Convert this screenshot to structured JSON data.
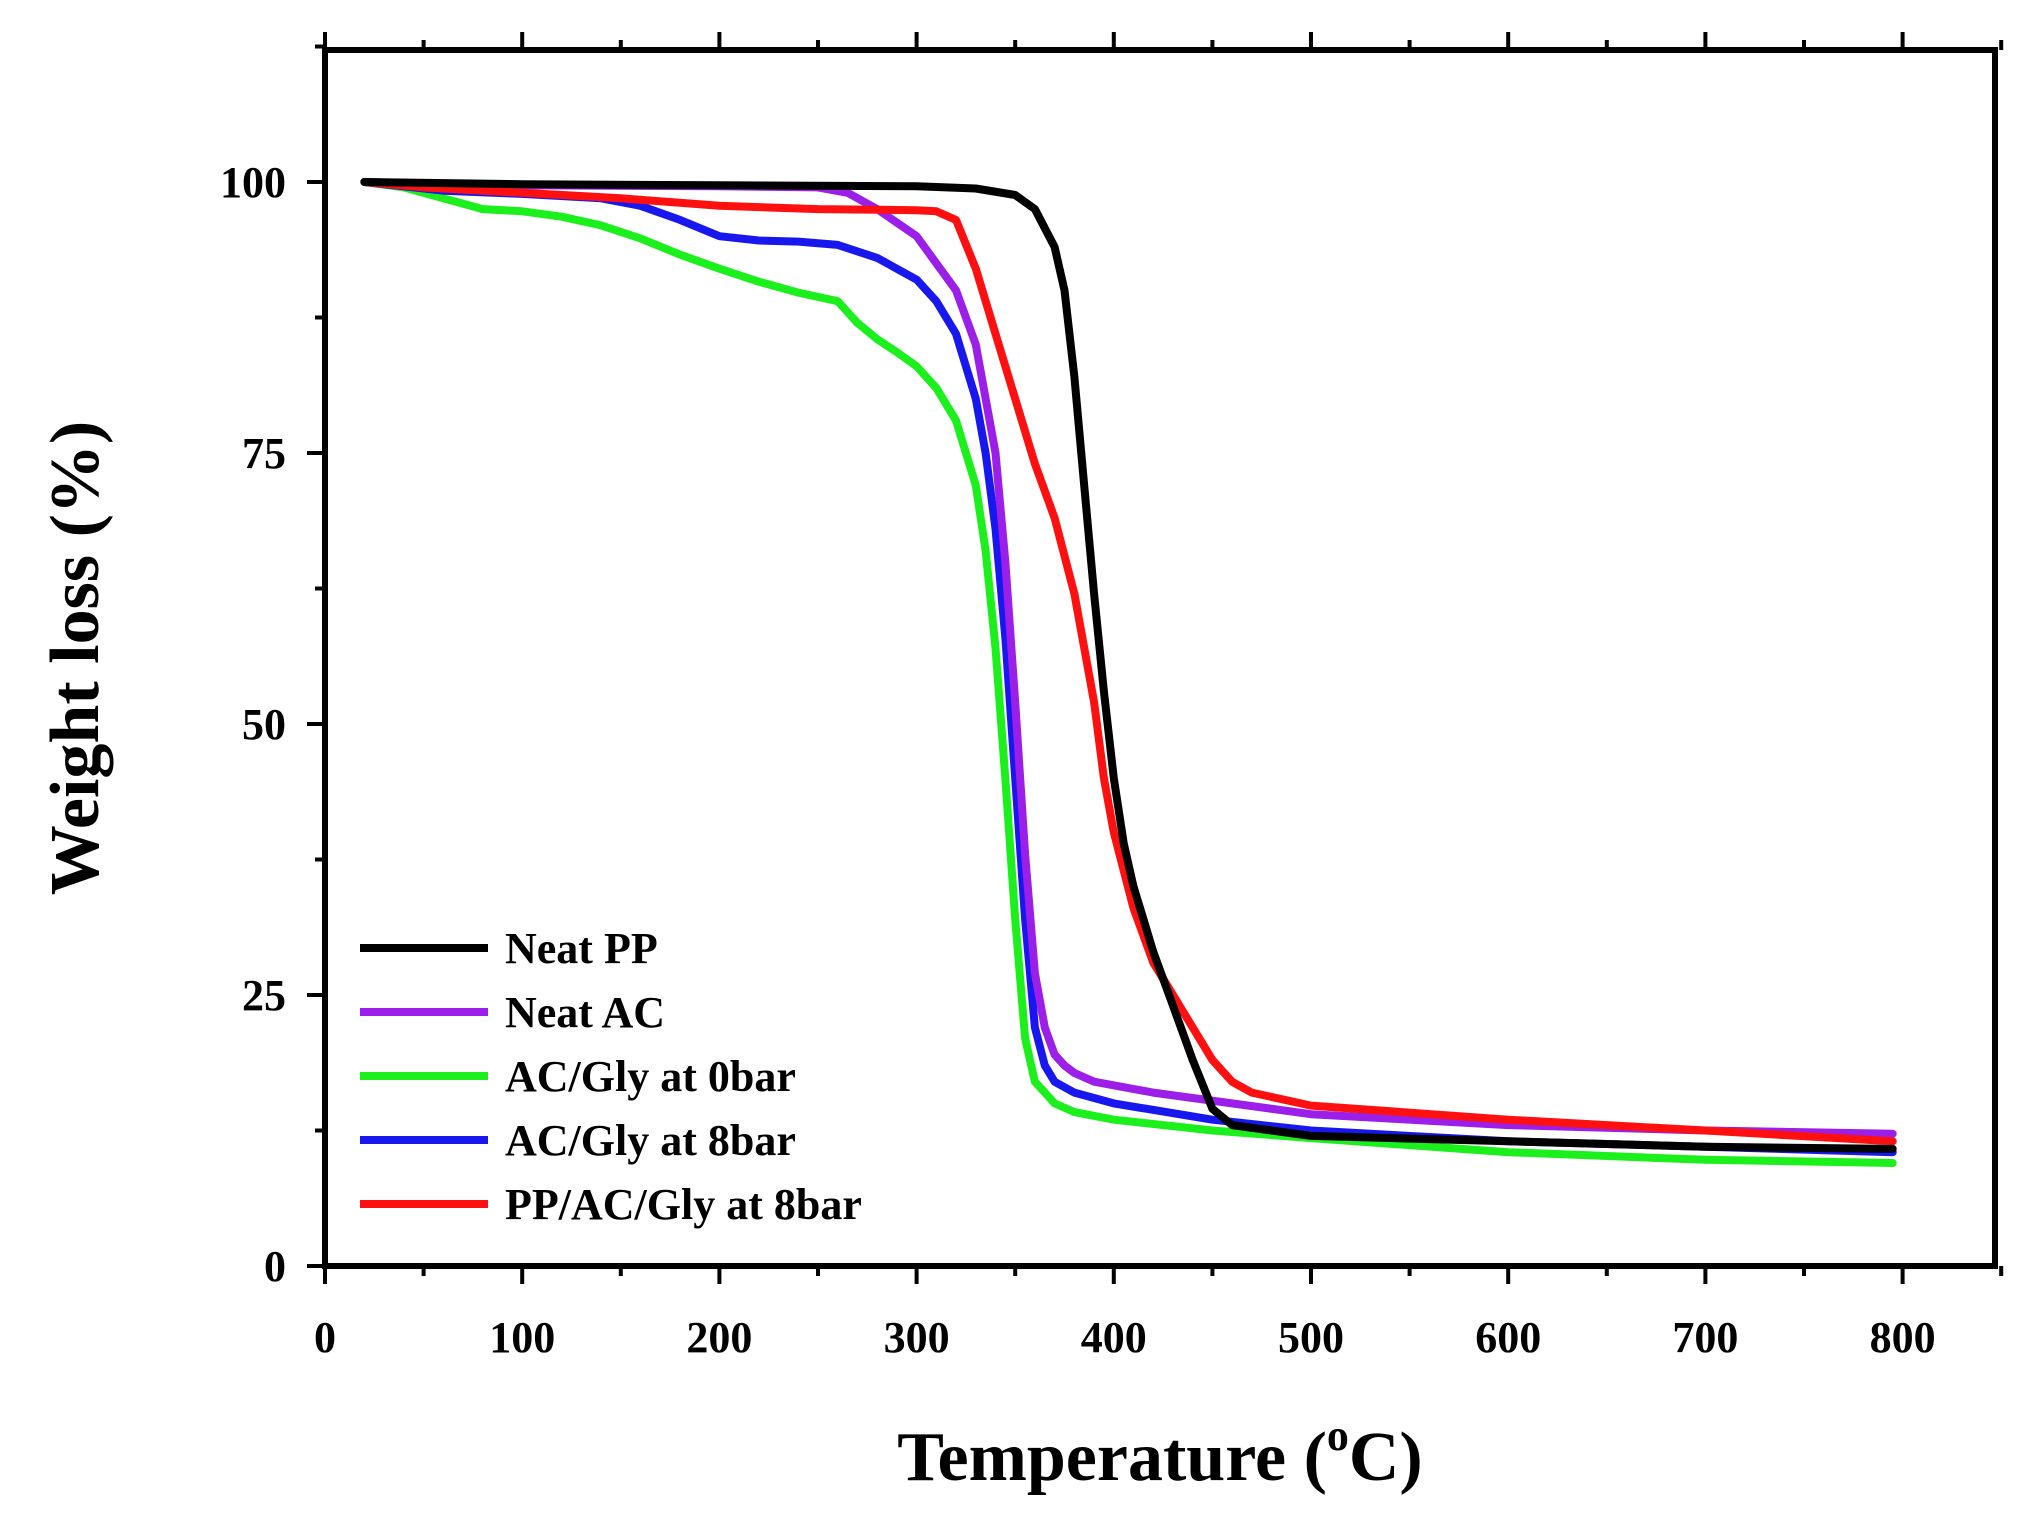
{
  "chart_data": {
    "type": "line",
    "title": "",
    "xlabel": "Temperature (",
    "xlabel_sup": "o",
    "xlabel_end": "C)",
    "ylabel": "Weight loss (%)",
    "xlim": [
      0,
      850
    ],
    "ylim": [
      0,
      112
    ],
    "x_ticks": [
      0,
      100,
      200,
      300,
      400,
      500,
      600,
      700,
      800
    ],
    "x_tick_labels": [
      "0",
      "100",
      "200",
      "300",
      "400",
      "500",
      "600",
      "700",
      "800"
    ],
    "x_minor_ticks": [
      50,
      150,
      250,
      350,
      450,
      550,
      650,
      750,
      850
    ],
    "y_ticks": [
      0,
      25,
      50,
      75,
      100
    ],
    "y_tick_labels": [
      "0",
      "25",
      "50",
      "75",
      "100"
    ],
    "y_minor_ticks": [
      12.5,
      37.5,
      62.5,
      87.5,
      112.5
    ],
    "grid": false,
    "legend_position": "bottom-left",
    "series": [
      {
        "name": "Neat PP",
        "color": "#000000",
        "x": [
          20,
          100,
          200,
          300,
          330,
          350,
          360,
          370,
          375,
          380,
          385,
          390,
          395,
          400,
          405,
          410,
          415,
          420,
          430,
          440,
          450,
          460,
          500,
          600,
          700,
          795
        ],
        "y": [
          100,
          99.8,
          99.7,
          99.6,
          99.4,
          98.8,
          97.5,
          94,
          90,
          82,
          72,
          62,
          53,
          45,
          39,
          35,
          32,
          29,
          24,
          19,
          14.5,
          13,
          12,
          11.5,
          11,
          10.8
        ]
      },
      {
        "name": "Neat AC",
        "color": "#9b1fe8",
        "x": [
          20,
          100,
          200,
          250,
          265,
          280,
          300,
          320,
          330,
          340,
          345,
          350,
          355,
          360,
          365,
          370,
          375,
          380,
          390,
          420,
          500,
          600,
          700,
          795
        ],
        "y": [
          100,
          99.7,
          99.6,
          99.5,
          99,
          97.5,
          95,
          90,
          85,
          75,
          65,
          52,
          38,
          27,
          22,
          19.5,
          18.5,
          17.8,
          17,
          16,
          14,
          13,
          12.5,
          12.2
        ]
      },
      {
        "name": "AC/Gly at 0bar",
        "color": "#1cf01c",
        "x": [
          20,
          40,
          60,
          80,
          100,
          120,
          140,
          160,
          180,
          200,
          220,
          240,
          260,
          270,
          280,
          290,
          300,
          310,
          320,
          330,
          335,
          340,
          345,
          350,
          355,
          360,
          365,
          370,
          380,
          400,
          450,
          500,
          600,
          700,
          795
        ],
        "y": [
          100,
          99.5,
          98.5,
          97.5,
          97.3,
          96.8,
          96,
          94.8,
          93.3,
          92,
          90.8,
          89.8,
          89,
          87,
          85.5,
          84.3,
          83,
          81,
          78,
          72,
          66,
          57,
          45,
          32,
          21,
          17,
          16,
          15,
          14.2,
          13.5,
          12.5,
          11.8,
          10.5,
          9.8,
          9.5
        ]
      },
      {
        "name": "AC/Gly at 8bar",
        "color": "#1818ee",
        "x": [
          20,
          60,
          100,
          140,
          160,
          180,
          200,
          220,
          240,
          260,
          280,
          300,
          310,
          320,
          330,
          335,
          340,
          345,
          350,
          355,
          360,
          365,
          370,
          380,
          400,
          450,
          500,
          600,
          700,
          795
        ],
        "y": [
          100,
          99.2,
          98.9,
          98.5,
          97.8,
          96.5,
          95,
          94.6,
          94.5,
          94.2,
          93,
          91,
          89,
          86,
          80,
          75,
          68,
          58,
          45,
          32,
          22,
          18.5,
          17,
          16,
          15,
          13.5,
          12.5,
          11.5,
          11,
          10.5
        ]
      },
      {
        "name": "PP/AC/Gly at 8bar",
        "color": "#ff1010",
        "x": [
          20,
          50,
          100,
          150,
          200,
          250,
          300,
          310,
          320,
          330,
          340,
          350,
          360,
          370,
          380,
          390,
          395,
          400,
          410,
          420,
          430,
          440,
          450,
          460,
          470,
          500,
          600,
          700,
          795
        ],
        "y": [
          100,
          99.5,
          99,
          98.5,
          97.8,
          97.5,
          97.4,
          97.3,
          96.5,
          92,
          86,
          80,
          74,
          69,
          62,
          52,
          45,
          40,
          33,
          28,
          25,
          22,
          19,
          17,
          16,
          14.8,
          13.5,
          12.5,
          11.5
        ]
      }
    ]
  }
}
